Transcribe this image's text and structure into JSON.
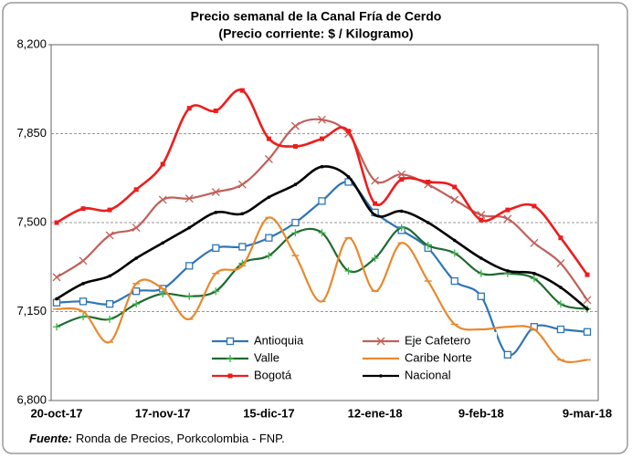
{
  "chart_data": {
    "type": "line",
    "title": "Precio semanal de la Canal Fría de Cerdo",
    "subtitle": "(Precio corriente: $ / Kilogramo)",
    "categories": [
      "20-oct-17",
      null,
      null,
      null,
      "17-nov-17",
      null,
      null,
      null,
      "15-dic-17",
      null,
      null,
      null,
      "12-ene-18",
      null,
      null,
      null,
      "9-feb-18",
      null,
      null,
      null,
      "9-mar-18"
    ],
    "ylim": [
      6800,
      8200
    ],
    "yticks": [
      {
        "value": 6800,
        "label": "6,800"
      },
      {
        "value": 7150,
        "label": "7,150"
      },
      {
        "value": 7500,
        "label": "7,500"
      },
      {
        "value": 7850,
        "label": "7,850"
      },
      {
        "value": 8200,
        "label": "8,200"
      }
    ],
    "grid": true,
    "legend": "bottom",
    "series": [
      {
        "name": "Antioquia",
        "color": "#2e75b6",
        "marker": "square-open",
        "values": [
          7185,
          7190,
          7180,
          7230,
          7240,
          7330,
          7400,
          7405,
          7440,
          7500,
          7585,
          7660,
          7540,
          7470,
          7400,
          7270,
          7210,
          6980,
          7090,
          7080,
          7070
        ]
      },
      {
        "name": "Eje Cafetero",
        "color": "#c0605a",
        "marker": "x",
        "values": [
          7285,
          7350,
          7450,
          7480,
          7590,
          7595,
          7620,
          7650,
          7750,
          7880,
          7905,
          7850,
          7665,
          7690,
          7650,
          7590,
          7530,
          7515,
          7420,
          7340,
          7195
        ]
      },
      {
        "name": "Valle",
        "color": "#1e6b2e",
        "marker": "plus",
        "values": [
          7090,
          7130,
          7120,
          7180,
          7220,
          7210,
          7230,
          7340,
          7370,
          7460,
          7460,
          7310,
          7360,
          7480,
          7410,
          7380,
          7300,
          7300,
          7280,
          7180,
          7160
        ]
      },
      {
        "name": "Caribe Norte",
        "color": "#e8892c",
        "marker": "dash",
        "values": [
          7160,
          7150,
          7030,
          7260,
          7240,
          7120,
          7300,
          7330,
          7520,
          7370,
          7190,
          7440,
          7230,
          7420,
          7270,
          7100,
          7080,
          7090,
          7080,
          6960,
          6960
        ]
      },
      {
        "name": "Bogotá",
        "color": "#ee1c1c",
        "marker": "square",
        "values": [
          7500,
          7555,
          7550,
          7630,
          7730,
          7950,
          7940,
          8020,
          7830,
          7800,
          7830,
          7860,
          7575,
          7670,
          7660,
          7640,
          7510,
          7550,
          7565,
          7440,
          7295
        ]
      },
      {
        "name": "Nacional",
        "color": "#000000",
        "marker": "dot",
        "values": [
          7200,
          7260,
          7290,
          7360,
          7420,
          7480,
          7540,
          7535,
          7600,
          7650,
          7720,
          7680,
          7530,
          7545,
          7500,
          7430,
          7360,
          7310,
          7300,
          7245,
          7160
        ]
      }
    ],
    "source_label": "Fuente:",
    "source": "Ronda de Precios, Porkcolombia - FNP."
  }
}
